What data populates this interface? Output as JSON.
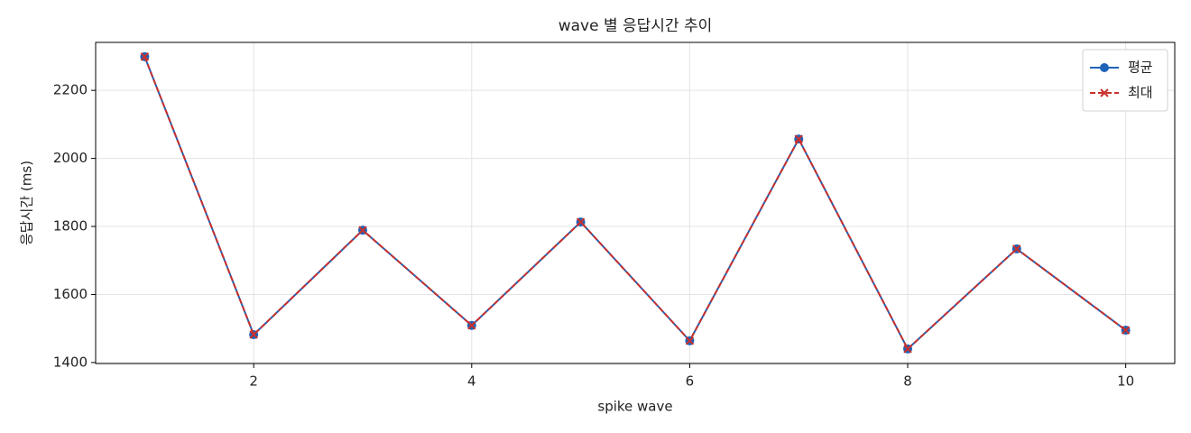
{
  "chart_data": {
    "type": "line",
    "title": "wave 별 응답시간 추이",
    "xlabel": "spike wave",
    "ylabel": "응답시간 (ms)",
    "x": [
      1,
      2,
      3,
      4,
      5,
      6,
      7,
      8,
      9,
      10
    ],
    "series": [
      {
        "name": "평균",
        "color": "#1f63b8",
        "marker": "o",
        "dash": false,
        "values": [
          2299,
          1482,
          1789,
          1509,
          1813,
          1464,
          2057,
          1440,
          1734,
          1495
        ]
      },
      {
        "name": "최대",
        "color": "#c9302c",
        "marker": "x",
        "dash": true,
        "values": [
          2299,
          1482,
          1789,
          1509,
          1813,
          1464,
          2057,
          1440,
          1734,
          1495
        ]
      }
    ],
    "xlim": [
      0.55,
      10.45
    ],
    "xticks": [
      2,
      4,
      6,
      8,
      10
    ],
    "ylim": [
      1397,
      2341
    ],
    "yticks": [
      1400,
      1600,
      1800,
      2000,
      2200
    ],
    "grid": true,
    "legend": "upper right"
  }
}
